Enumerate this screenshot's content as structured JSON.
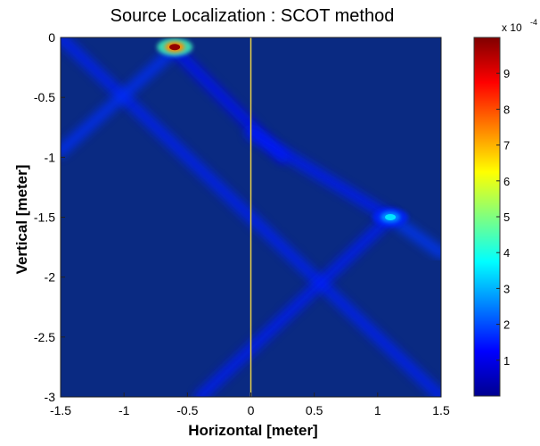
{
  "chart_data": {
    "type": "heatmap",
    "title": "Source Localization : SCOT method",
    "xlabel": "Horizontal [meter]",
    "ylabel": "Vertical [meter]",
    "xlim": [
      -1.5,
      1.5
    ],
    "ylim": [
      -3,
      0
    ],
    "x_ticks": [
      "-1.5",
      "-1",
      "-0.5",
      "0",
      "0.5",
      "1",
      "1.5"
    ],
    "y_ticks": [
      "0",
      "-0.5",
      "-1",
      "-1.5",
      "-2",
      "-2.5",
      "-3"
    ],
    "colormap": "jet",
    "colorbar": {
      "range": [
        0,
        10
      ],
      "ticks": [
        "1",
        "2",
        "3",
        "4",
        "5",
        "6",
        "7",
        "8",
        "9"
      ],
      "exponent_label": "x 10",
      "exponent_power": "-4"
    },
    "reference_line": {
      "x": 0,
      "color": "#e8d04a"
    },
    "peaks": [
      {
        "x": -0.6,
        "y": -0.08,
        "value": 9.8
      },
      {
        "x": 1.1,
        "y": -1.5,
        "value": 3.5
      }
    ],
    "ridges": [
      {
        "x0": -1.5,
        "y0": 0.0,
        "x1": 1.5,
        "y1": -3.0,
        "value": 1.6
      },
      {
        "x0": -0.6,
        "y0": -0.1,
        "x1": -1.5,
        "y1": -0.95,
        "value": 1.7
      },
      {
        "x0": -0.6,
        "y0": -0.1,
        "x1": 0.25,
        "y1": -1.0,
        "value": 1.4
      },
      {
        "x0": 1.1,
        "y0": -1.5,
        "x1": 0.0,
        "y1": -0.8,
        "value": 1.5
      },
      {
        "x0": 1.1,
        "y0": -1.5,
        "x1": 1.5,
        "y1": -1.8,
        "value": 1.8
      },
      {
        "x0": 1.1,
        "y0": -1.5,
        "x1": -0.4,
        "y1": -3.0,
        "value": 1.5
      }
    ]
  }
}
